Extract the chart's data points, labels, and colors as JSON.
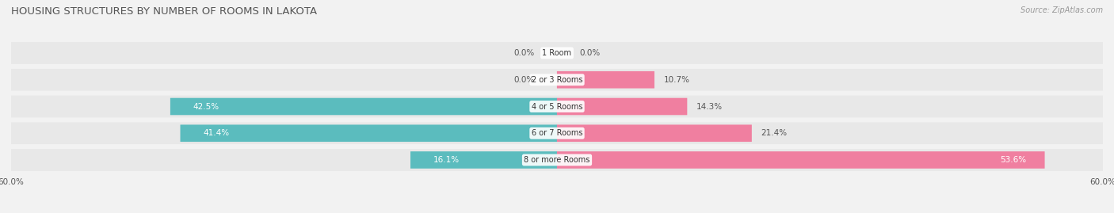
{
  "title": "HOUSING STRUCTURES BY NUMBER OF ROOMS IN LAKOTA",
  "source": "Source: ZipAtlas.com",
  "categories": [
    "1 Room",
    "2 or 3 Rooms",
    "4 or 5 Rooms",
    "6 or 7 Rooms",
    "8 or more Rooms"
  ],
  "owner_values": [
    0.0,
    0.0,
    42.5,
    41.4,
    16.1
  ],
  "renter_values": [
    0.0,
    10.7,
    14.3,
    21.4,
    53.6
  ],
  "owner_color": "#5bbcbe",
  "renter_color": "#f07fa0",
  "axis_max": 60.0,
  "background_color": "#f2f2f2",
  "row_bg_color": "#e8e8e8",
  "row_bg_color_alt": "#dedede",
  "title_fontsize": 9.5,
  "source_fontsize": 7,
  "label_fontsize": 7.5,
  "category_fontsize": 7,
  "legend_fontsize": 8
}
